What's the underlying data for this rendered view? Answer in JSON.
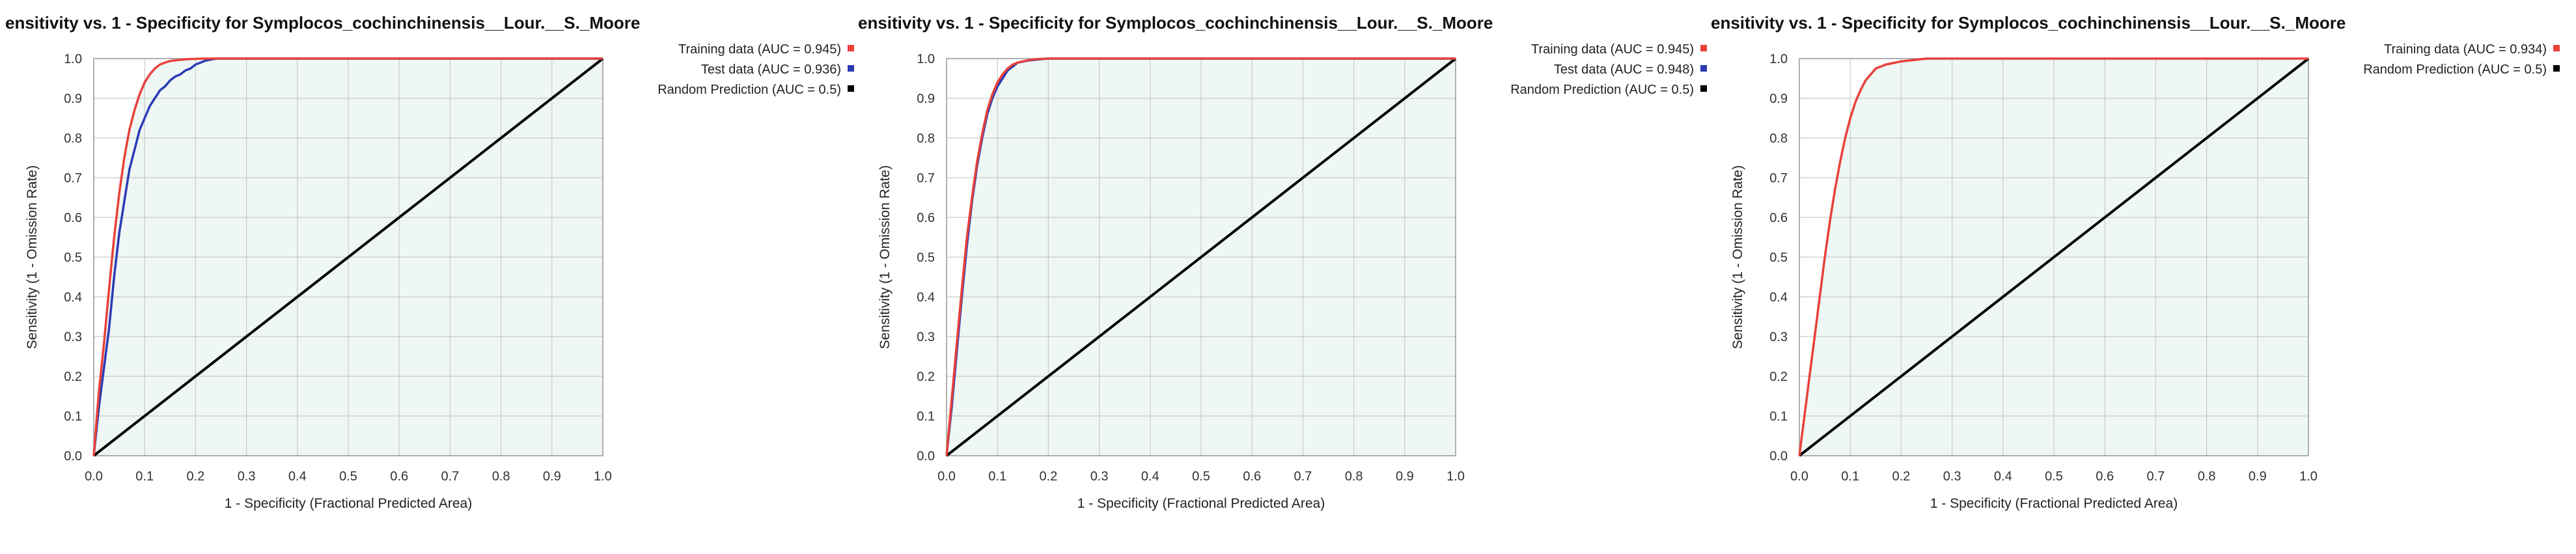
{
  "chart_data": [
    {
      "type": "line",
      "title": "ensitivity vs. 1 - Specificity for Symplocos_cochinchinensis__Lour.__S._Moore",
      "xlabel": "1 - Specificity  (Fractional Predicted Area)",
      "ylabel": "Sensitivity (1 - Omission Rate)",
      "xlim": [
        0,
        1
      ],
      "ylim": [
        0,
        1
      ],
      "ticks": [
        "0.0",
        "0.1",
        "0.2",
        "0.3",
        "0.4",
        "0.5",
        "0.6",
        "0.7",
        "0.8",
        "0.9",
        "1.0"
      ],
      "grid": true,
      "legend_position": "right",
      "series": [
        {
          "name": "Training data (AUC = 0.945)",
          "color": "#e8413a",
          "x": [
            0,
            0.01,
            0.02,
            0.03,
            0.04,
            0.05,
            0.06,
            0.07,
            0.08,
            0.09,
            0.1,
            0.11,
            0.12,
            0.13,
            0.14,
            0.15,
            0.17,
            0.19,
            0.22,
            0.25,
            0.3,
            0.4,
            0.6,
            0.8,
            1.0
          ],
          "y": [
            0,
            0.16,
            0.28,
            0.42,
            0.55,
            0.66,
            0.75,
            0.82,
            0.87,
            0.91,
            0.94,
            0.96,
            0.975,
            0.985,
            0.99,
            0.994,
            0.997,
            0.999,
            1.0,
            1.0,
            1.0,
            1.0,
            1.0,
            1.0,
            1.0
          ]
        },
        {
          "name": "Test data (AUC = 0.936)",
          "color": "#2b3bb5",
          "x": [
            0,
            0.01,
            0.02,
            0.03,
            0.04,
            0.05,
            0.06,
            0.07,
            0.08,
            0.09,
            0.1,
            0.11,
            0.12,
            0.13,
            0.14,
            0.15,
            0.16,
            0.17,
            0.18,
            0.19,
            0.2,
            0.22,
            0.24,
            0.3,
            0.5,
            0.8,
            1.0
          ],
          "y": [
            0,
            0.12,
            0.22,
            0.32,
            0.45,
            0.56,
            0.64,
            0.72,
            0.77,
            0.82,
            0.85,
            0.88,
            0.9,
            0.92,
            0.93,
            0.945,
            0.955,
            0.96,
            0.97,
            0.975,
            0.985,
            0.995,
            1.0,
            1.0,
            1.0,
            1.0,
            1.0
          ]
        },
        {
          "name": "Random Prediction (AUC = 0.5)",
          "color": "#000000",
          "x": [
            0,
            1
          ],
          "y": [
            0,
            1
          ]
        }
      ]
    },
    {
      "type": "line",
      "title": "ensitivity vs. 1 - Specificity for Symplocos_cochinchinensis__Lour.__S._Moore",
      "xlabel": "1 - Specificity  (Fractional Predicted Area)",
      "ylabel": "Sensitivity (1 - Omission Rate)",
      "xlim": [
        0,
        1
      ],
      "ylim": [
        0,
        1
      ],
      "ticks": [
        "0.0",
        "0.1",
        "0.2",
        "0.3",
        "0.4",
        "0.5",
        "0.6",
        "0.7",
        "0.8",
        "0.9",
        "1.0"
      ],
      "grid": true,
      "legend_position": "right",
      "series": [
        {
          "name": "Training data (AUC = 0.945)",
          "color": "#e8413a",
          "x": [
            0,
            0.01,
            0.02,
            0.03,
            0.04,
            0.05,
            0.06,
            0.07,
            0.08,
            0.09,
            0.1,
            0.11,
            0.12,
            0.13,
            0.14,
            0.16,
            0.18,
            0.2,
            0.24,
            0.3,
            0.4,
            0.6,
            0.8,
            1.0
          ],
          "y": [
            0,
            0.14,
            0.28,
            0.42,
            0.55,
            0.65,
            0.74,
            0.81,
            0.87,
            0.91,
            0.94,
            0.96,
            0.975,
            0.985,
            0.99,
            0.996,
            0.999,
            1.0,
            1.0,
            1.0,
            1.0,
            1.0,
            1.0,
            1.0
          ]
        },
        {
          "name": "Test data (AUC = 0.948)",
          "color": "#2b3bb5",
          "x": [
            0,
            0.01,
            0.02,
            0.03,
            0.04,
            0.05,
            0.06,
            0.07,
            0.08,
            0.09,
            0.1,
            0.11,
            0.12,
            0.13,
            0.14,
            0.16,
            0.18,
            0.2,
            0.24,
            0.3,
            0.4,
            0.6,
            0.8,
            1.0
          ],
          "y": [
            0,
            0.12,
            0.26,
            0.4,
            0.53,
            0.64,
            0.73,
            0.8,
            0.86,
            0.9,
            0.93,
            0.95,
            0.97,
            0.98,
            0.99,
            0.995,
            0.998,
            1.0,
            1.0,
            1.0,
            1.0,
            1.0,
            1.0,
            1.0
          ]
        },
        {
          "name": "Random Prediction (AUC = 0.5)",
          "color": "#000000",
          "x": [
            0,
            1
          ],
          "y": [
            0,
            1
          ]
        }
      ]
    },
    {
      "type": "line",
      "title": "ensitivity vs. 1 - Specificity for Symplocos_cochinchinensis__Lour.__S._Moore",
      "xlabel": "1 - Specificity  (Fractional Predicted Area)",
      "ylabel": "Sensitivity (1 - Omission Rate)",
      "xlim": [
        0,
        1
      ],
      "ylim": [
        0,
        1
      ],
      "ticks": [
        "0.0",
        "0.1",
        "0.2",
        "0.3",
        "0.4",
        "0.5",
        "0.6",
        "0.7",
        "0.8",
        "0.9",
        "1.0"
      ],
      "grid": true,
      "legend_position": "right",
      "series": [
        {
          "name": "Training data (AUC = 0.934)",
          "color": "#e8413a",
          "x": [
            0,
            0.01,
            0.02,
            0.03,
            0.04,
            0.05,
            0.06,
            0.07,
            0.08,
            0.09,
            0.1,
            0.11,
            0.12,
            0.13,
            0.14,
            0.15,
            0.17,
            0.2,
            0.25,
            0.3,
            0.4,
            0.6,
            0.8,
            1.0
          ],
          "y": [
            0,
            0.1,
            0.2,
            0.3,
            0.4,
            0.5,
            0.59,
            0.67,
            0.74,
            0.8,
            0.85,
            0.89,
            0.92,
            0.945,
            0.96,
            0.975,
            0.985,
            0.993,
            1.0,
            1.0,
            1.0,
            1.0,
            1.0,
            1.0
          ]
        },
        {
          "name": "Random Prediction (AUC = 0.5)",
          "color": "#000000",
          "x": [
            0,
            1
          ],
          "y": [
            0,
            1
          ]
        }
      ]
    }
  ]
}
